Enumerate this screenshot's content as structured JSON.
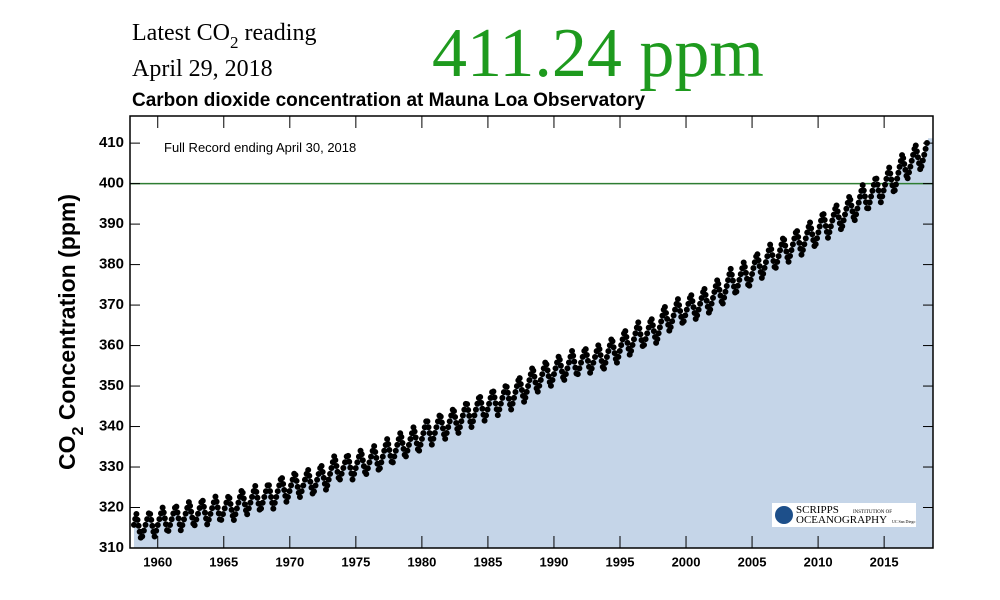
{
  "chart_data": {
    "type": "line",
    "header": {
      "latest_prefix": "Latest CO",
      "latest_sub": "2",
      "latest_suffix": " reading",
      "latest_date": "April 29, 2018",
      "latest_value": "411.24 ppm"
    },
    "title": "Carbon dioxide concentration at Mauna Loa Observatory",
    "annotation": "Full Record ending April 30, 2018",
    "ylabel": {
      "prefix": "CO",
      "sub": "2",
      "suffix": " Concentration (ppm)"
    },
    "logo": {
      "name": "SCRIPPS",
      "institution": "INSTITUTION OF",
      "ocean": "OCEANOGRAPHY",
      "ucsd": "UC San Diego"
    },
    "reference_line": 400,
    "reference_color": "#2e7d32",
    "color": "#000000",
    "area_color": "#c5d5e8",
    "xlim": [
      1957.9,
      2018.7
    ],
    "ylim": [
      310,
      416.7
    ],
    "xticks": [
      1960,
      1965,
      1970,
      1975,
      1980,
      1985,
      1990,
      1995,
      2000,
      2005,
      2010,
      2015
    ],
    "yticks": [
      310,
      320,
      330,
      340,
      350,
      360,
      370,
      380,
      390,
      400,
      410
    ],
    "x": [
      1958.2,
      1958.38,
      1958.75,
      1959.38,
      1959.75,
      1960.38,
      1960.75,
      1961.38,
      1961.75,
      1962.38,
      1962.75,
      1963.38,
      1963.75,
      1964.38,
      1964.75,
      1965.38,
      1965.75,
      1966.38,
      1966.75,
      1967.38,
      1967.75,
      1968.38,
      1968.75,
      1969.38,
      1969.75,
      1970.38,
      1970.75,
      1971.38,
      1971.75,
      1972.38,
      1972.75,
      1973.38,
      1973.75,
      1974.38,
      1974.75,
      1975.38,
      1975.75,
      1976.38,
      1976.75,
      1977.38,
      1977.75,
      1978.38,
      1978.75,
      1979.38,
      1979.75,
      1980.38,
      1980.75,
      1981.38,
      1981.75,
      1982.38,
      1982.75,
      1983.38,
      1983.75,
      1984.38,
      1984.75,
      1985.38,
      1985.75,
      1986.38,
      1986.75,
      1987.38,
      1987.75,
      1988.38,
      1988.75,
      1989.38,
      1989.75,
      1990.38,
      1990.75,
      1991.38,
      1991.75,
      1992.38,
      1992.75,
      1993.38,
      1993.75,
      1994.38,
      1994.75,
      1995.38,
      1995.75,
      1996.38,
      1996.75,
      1997.38,
      1997.75,
      1998.38,
      1998.75,
      1999.38,
      1999.75,
      2000.38,
      2000.75,
      2001.38,
      2001.75,
      2002.38,
      2002.75,
      2003.38,
      2003.75,
      2004.38,
      2004.75,
      2005.38,
      2005.75,
      2006.38,
      2006.75,
      2007.38,
      2007.75,
      2008.38,
      2008.75,
      2009.38,
      2009.75,
      2010.38,
      2010.75,
      2011.38,
      2011.75,
      2012.38,
      2012.75,
      2013.38,
      2013.75,
      2014.38,
      2014.75,
      2015.38,
      2015.75,
      2016.38,
      2016.75,
      2017.38,
      2017.75,
      2018.33
    ],
    "values": [
      315.7,
      318.5,
      312.0,
      319.2,
      312.7,
      320.1,
      313.6,
      320.8,
      314.3,
      321.6,
      315.1,
      322.2,
      315.7,
      322.8,
      316.3,
      323.2,
      316.7,
      324.6,
      318.1,
      325.4,
      318.9,
      326.2,
      319.7,
      327.8,
      321.3,
      328.9,
      322.4,
      329.5,
      323.0,
      330.7,
      324.2,
      332.9,
      326.4,
      333.4,
      326.9,
      334.3,
      327.8,
      335.3,
      328.8,
      337.0,
      330.5,
      338.6,
      332.1,
      340.0,
      333.5,
      342.0,
      335.5,
      343.3,
      336.8,
      344.7,
      338.2,
      346.3,
      339.8,
      347.9,
      341.4,
      349.3,
      342.8,
      350.6,
      344.1,
      352.4,
      345.9,
      354.8,
      348.3,
      356.3,
      349.8,
      357.6,
      351.1,
      358.8,
      352.3,
      359.6,
      353.1,
      360.3,
      353.8,
      362.0,
      355.5,
      364.0,
      357.5,
      365.8,
      359.3,
      366.9,
      360.4,
      369.9,
      363.4,
      371.6,
      365.1,
      372.8,
      366.3,
      374.3,
      367.8,
      376.4,
      369.9,
      379.0,
      372.5,
      380.7,
      374.2,
      383.0,
      376.5,
      385.1,
      378.6,
      387.0,
      380.5,
      388.8,
      382.3,
      390.6,
      384.1,
      393.1,
      386.6,
      394.9,
      388.4,
      397.1,
      390.6,
      399.7,
      393.2,
      401.9,
      395.4,
      404.0,
      397.5,
      407.4,
      400.9,
      409.7,
      403.2,
      411.2
    ]
  }
}
